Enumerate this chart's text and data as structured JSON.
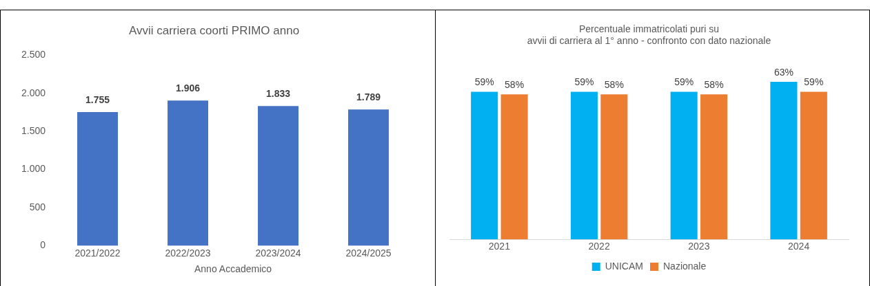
{
  "chart_data": [
    {
      "type": "bar",
      "title": "Avvii carriera coorti PRIMO anno",
      "xlabel": "Anno Accademico",
      "categories": [
        "2021/2022",
        "2022/2023",
        "2023/2024",
        "2024/2025"
      ],
      "values": [
        1755,
        1906,
        1833,
        1789
      ],
      "color": "#4472c4",
      "value_labels": [
        "1.755",
        "1.906",
        "1.833",
        "1.789"
      ],
      "ylim": [
        0,
        2500
      ],
      "yticks": [
        0,
        {
          "value": 500,
          "label": "500"
        },
        {
          "value": 1000,
          "label": "1.000"
        },
        {
          "value": 1500,
          "label": "1.500"
        },
        {
          "value": 2000,
          "label": "2.000"
        },
        {
          "value": 2500,
          "label": "2.500"
        }
      ],
      "grid": false,
      "legend": false
    },
    {
      "type": "bar",
      "title": "Percentuale immatricolati puri su\navvii di carriera al 1° anno - confronto con dato nazionale",
      "categories": [
        "2021",
        "2022",
        "2023",
        "2024"
      ],
      "series": [
        {
          "name": "UNICAM",
          "color": "#00b0f0",
          "values": [
            59,
            59,
            59,
            63
          ],
          "value_labels": [
            "59%",
            "59%",
            "59%",
            "63%"
          ]
        },
        {
          "name": "Nazionale",
          "color": "#ed7d31",
          "values": [
            58,
            58,
            58,
            59
          ],
          "value_labels": [
            "58%",
            "58%",
            "58%",
            "59%"
          ]
        }
      ],
      "tick_labels": "x",
      "grid": false,
      "legend": "bottom"
    }
  ]
}
